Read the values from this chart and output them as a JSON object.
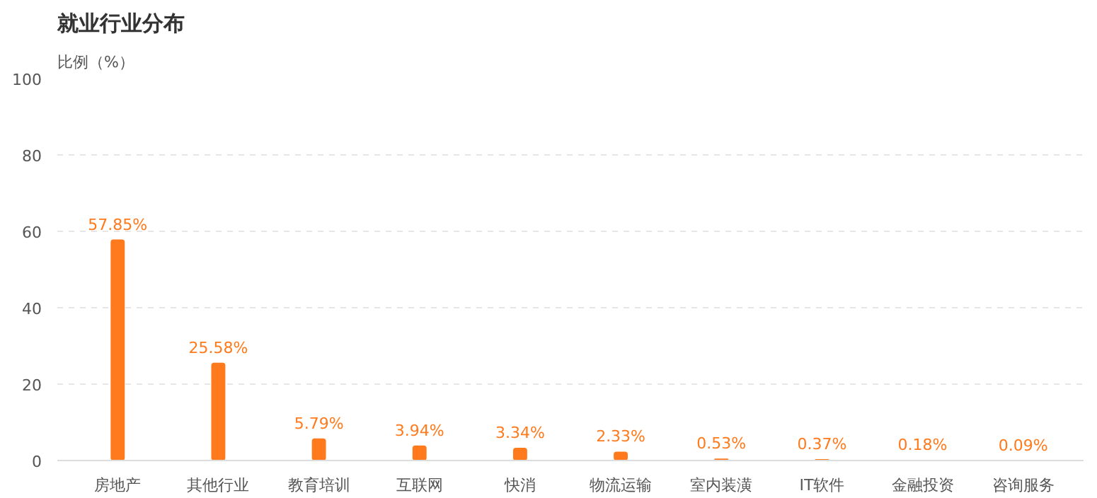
{
  "chart_data": {
    "type": "bar",
    "title": "就业行业分布",
    "ylabel": "比例（%）",
    "categories": [
      "房地产",
      "其他行业",
      "教育培训",
      "互联网",
      "快消",
      "物流运输",
      "室内装潢",
      "IT软件",
      "金融投资",
      "咨询服务"
    ],
    "values": [
      57.85,
      25.58,
      5.79,
      3.94,
      3.34,
      2.33,
      0.53,
      0.37,
      0.18,
      0.09
    ],
    "value_labels": [
      "57.85%",
      "25.58%",
      "5.79%",
      "3.94%",
      "3.34%",
      "2.33%",
      "0.53%",
      "0.37%",
      "0.18%",
      "0.09%"
    ],
    "color": "#ff7a1c",
    "ylim": [
      0,
      100
    ],
    "yticks": [
      0,
      20,
      40,
      60,
      80,
      100
    ],
    "grid": "y"
  }
}
